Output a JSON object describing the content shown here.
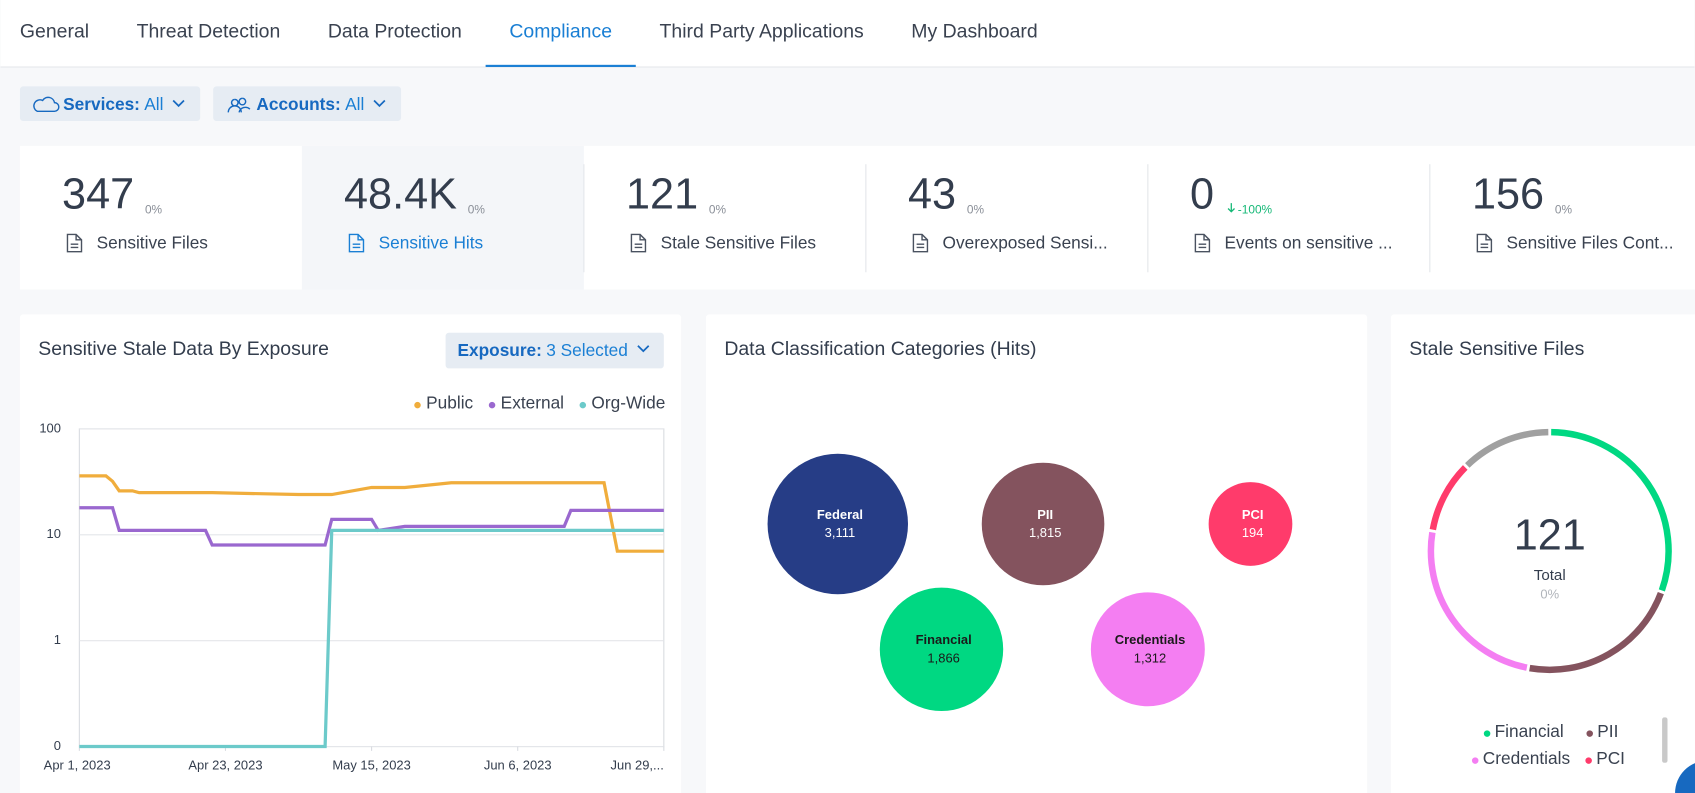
{
  "tabs": {
    "items": [
      "General",
      "Threat Detection",
      "Data Protection",
      "Compliance",
      "Third Party Applications",
      "My Dashboard"
    ],
    "active_index": 3
  },
  "filters": [
    {
      "label": "Services:",
      "value": "All"
    },
    {
      "label": "Accounts:",
      "value": "All"
    }
  ],
  "kpis": [
    {
      "value": "347",
      "change": "0%",
      "label": "Sensitive Files"
    },
    {
      "value": "48.4K",
      "change": "0%",
      "label": "Sensitive Hits"
    },
    {
      "value": "121",
      "change": "0%",
      "label": "Stale Sensitive Files"
    },
    {
      "value": "43",
      "change": "0%",
      "label": "Overexposed Sensi..."
    },
    {
      "value": "0",
      "change": "-100%",
      "label": "Events on sensitive ..."
    },
    {
      "value": "156",
      "change": "0%",
      "label": "Sensitive Files Cont..."
    }
  ],
  "selected_kpi": 1,
  "charts": [
    {
      "type": "line",
      "title": "Sensitive Stale Data By Exposure",
      "filter": {
        "label": "Exposure:",
        "value": "3 Selected"
      },
      "x": [
        "2023-04-01",
        "2023-04-05",
        "2023-04-06",
        "2023-04-07",
        "2023-04-09",
        "2023-04-10",
        "2023-04-20",
        "2023-04-21",
        "2023-05-04",
        "2023-05-08",
        "2023-05-09",
        "2023-05-15",
        "2023-05-16",
        "2023-05-20",
        "2023-05-27",
        "2023-06-13",
        "2023-06-14",
        "2023-06-19",
        "2023-06-21",
        "2023-06-28"
      ],
      "xlim": [
        "2023-04-01",
        "2023-06-28"
      ],
      "xticks": [
        {
          "value": "2023-04-01",
          "label": "Apr 1, 2023"
        },
        {
          "value": "2023-04-23",
          "label": "Apr 23, 2023"
        },
        {
          "value": "2023-05-15",
          "label": "May 15, 2023"
        },
        {
          "value": "2023-06-06",
          "label": "Jun 6, 2023"
        },
        {
          "value": "2023-06-29",
          "label": "Jun 29,..."
        }
      ],
      "ylim": [
        0,
        100
      ],
      "yticks": [
        0,
        1,
        10,
        100
      ],
      "yscale": "log",
      "grid": true,
      "series": [
        {
          "name": "Public",
          "color": "#f0ad3c",
          "values": [
            36,
            36,
            32,
            26,
            26,
            25,
            25,
            25,
            24,
            24,
            24,
            28,
            28,
            28,
            31,
            31,
            31,
            31,
            7,
            7
          ]
        },
        {
          "name": "External",
          "color": "#9a68cf",
          "values": [
            18,
            18,
            18,
            11,
            11,
            11,
            11,
            8,
            8,
            8,
            14,
            14,
            11,
            12,
            12,
            12,
            17,
            17,
            17,
            17
          ]
        },
        {
          "name": "Org-Wide",
          "color": "#6ccaca",
          "values": [
            0,
            0,
            0,
            0,
            0,
            0,
            0,
            0,
            0,
            0,
            11,
            11,
            11,
            11,
            11,
            11,
            11,
            11,
            11,
            11
          ]
        }
      ]
    },
    {
      "type": "bubble",
      "title": "Data Classification Categories (Hits)",
      "categories": [
        "Federal",
        "PII",
        "PCI",
        "Financial",
        "Credentials"
      ],
      "values": [
        3111,
        1815,
        194,
        1866,
        1312
      ],
      "value_labels": [
        "3,111",
        "1,815",
        "194",
        "1,866",
        "1,312"
      ],
      "colors": [
        "#263d86",
        "#84535e",
        "#ff3b6b",
        "#00d882",
        "#f47ef2"
      ]
    },
    {
      "type": "donut",
      "title": "Stale Sensitive Files",
      "center_value": 121,
      "center_label": "Total",
      "center_change": "0%",
      "categories": [
        "Financial",
        "PII",
        "Credentials",
        "PCI",
        null
      ],
      "values": [
        37,
        27,
        30,
        12,
        15
      ],
      "colors": [
        "#00d882",
        "#84535e",
        "#f47ef2",
        "#ff3b6b",
        "#a0a0a0"
      ]
    }
  ]
}
